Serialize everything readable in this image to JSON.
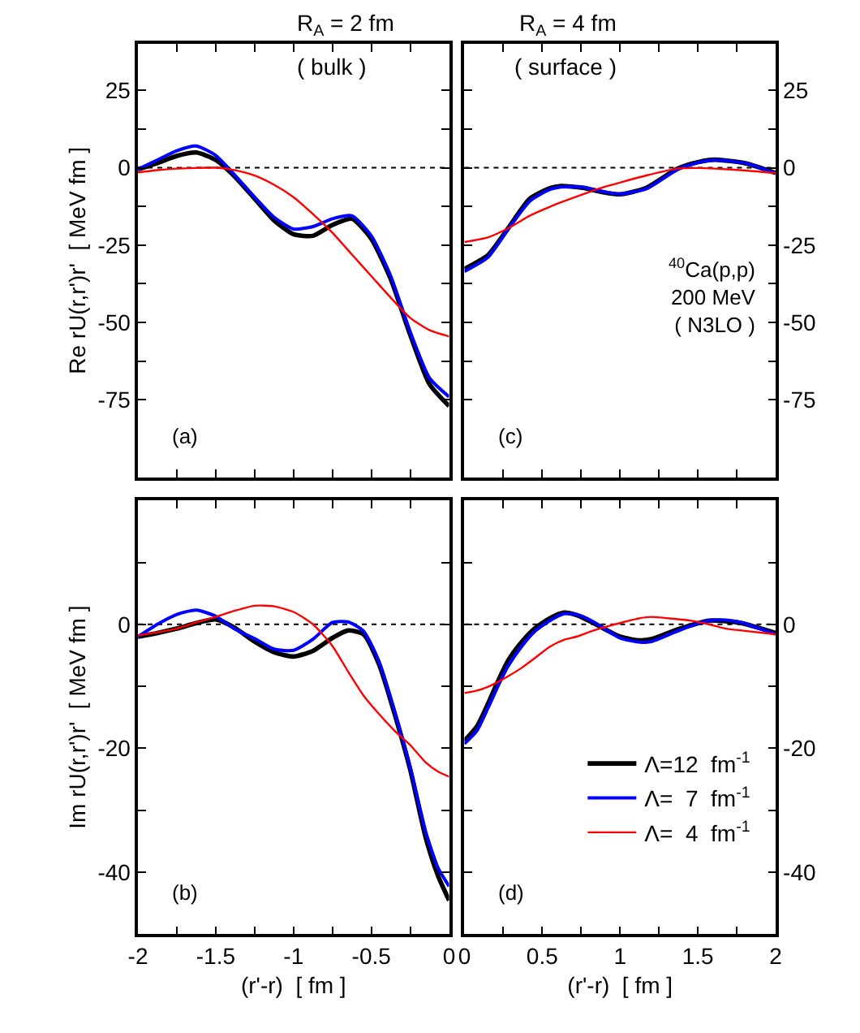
{
  "chart_data": [
    {
      "type": "line",
      "title": "R$_{A}$ = 2 fm",
      "subtitle": "( bulk )",
      "ylabel": "Re rU(r,r')r'  [ MeV fm ]",
      "annotations": [
        "(a)"
      ],
      "tick_labels": "y",
      "xlim": [
        -2,
        0
      ],
      "xticks": [
        {
          "value": -2,
          "label": null
        },
        {
          "value": -1.75,
          "label": null
        },
        {
          "value": -1.5,
          "label": null
        },
        {
          "value": -1.25,
          "label": null
        },
        {
          "value": -1,
          "label": null
        },
        {
          "value": -0.75,
          "label": null
        },
        {
          "value": -0.5,
          "label": null
        },
        {
          "value": -0.25,
          "label": null
        }
      ],
      "ylim": [
        -100,
        40
      ],
      "yticks": [
        {
          "value": -62.5,
          "label": null
        },
        -75,
        -50,
        {
          "value": -37.5,
          "label": null
        },
        -25,
        {
          "value": -12.5,
          "label": null
        },
        0,
        {
          "value": 12.5,
          "label": null
        },
        25
      ],
      "ref_lines": [
        {
          "axis": "y",
          "value": 0,
          "color": "#000000",
          "line_style": "dotted"
        }
      ],
      "x": [
        -2,
        -1.875,
        -1.75,
        -1.625,
        -1.5,
        -1.375,
        -1.25,
        -1.125,
        -1,
        -0.875,
        -0.75,
        -0.625,
        -0.5,
        -0.375,
        -0.25,
        -0.125,
        0
      ],
      "series": [
        {
          "color": "#000000",
          "values": [
            -0.5,
            1.5,
            3.8,
            4.9,
            2.5,
            -3,
            -10,
            -17,
            -21.5,
            -22,
            -18.5,
            -16.5,
            -23,
            -36,
            -54,
            -70,
            -77
          ]
        },
        {
          "color": "#0000ff",
          "values": [
            -0.5,
            2.5,
            5.5,
            7,
            4,
            -2.5,
            -9.5,
            -16,
            -19.8,
            -19,
            -16.5,
            -15.5,
            -22,
            -35,
            -53,
            -68,
            -74
          ]
        },
        {
          "color": "#ff0000",
          "values": [
            -1.5,
            -0.8,
            -0.3,
            -0.1,
            0,
            -0.8,
            -2.5,
            -5.5,
            -9.5,
            -15,
            -21,
            -28,
            -35,
            -42,
            -48.5,
            -52.5,
            -54.5
          ]
        }
      ]
    },
    {
      "type": "line",
      "title": "R$_{A}$ = 4 fm",
      "subtitle": "( surface )",
      "annotations": [
        "$^{40}$Ca(p,p)\n200 MeV\n( N3LO )",
        "(c)"
      ],
      "tick_labels": "y",
      "xlim": [
        0,
        2
      ],
      "xticks": [
        {
          "value": 0.25,
          "label": null
        },
        {
          "value": 0.5,
          "label": null
        },
        {
          "value": 0.75,
          "label": null
        },
        {
          "value": 1,
          "label": null
        },
        {
          "value": 1.25,
          "label": null
        },
        {
          "value": 1.5,
          "label": null
        },
        {
          "value": 1.75,
          "label": null
        }
      ],
      "ylim": [
        -100,
        40
      ],
      "yticks": [
        {
          "value": -62.5,
          "label": null
        },
        -75,
        -50,
        {
          "value": -37.5,
          "label": null
        },
        -25,
        {
          "value": -12.5,
          "label": null
        },
        0,
        {
          "value": 12.5,
          "label": null
        },
        25
      ],
      "ref_lines": [
        {
          "axis": "y",
          "value": 0,
          "color": "#000000",
          "line_style": "dotted"
        }
      ],
      "x": [
        0,
        0.15,
        0.28,
        0.42,
        0.55,
        0.62,
        0.76,
        0.9,
        1.0,
        1.17,
        1.37,
        1.5,
        1.61,
        1.81,
        2
      ],
      "series": [
        {
          "color": "#000000",
          "values": [
            -32.7,
            -28.3,
            -19.6,
            -10,
            -6.6,
            -5.9,
            -6.5,
            -8,
            -8.6,
            -6.5,
            -0.3,
            1.8,
            2.6,
            1.4,
            -1.7
          ]
        },
        {
          "color": "#0000ff",
          "values": [
            -33.5,
            -29,
            -20,
            -10.8,
            -7,
            -6.2,
            -6.3,
            -7.8,
            -8.5,
            -6.8,
            -0.6,
            1.6,
            2.5,
            1.4,
            -1.8
          ]
        },
        {
          "color": "#ff0000",
          "values": [
            -24,
            -22.5,
            -19.6,
            -15.5,
            -12.6,
            -11.2,
            -8.6,
            -6.2,
            -4.8,
            -2.5,
            -0.3,
            -0.1,
            -0.3,
            -0.9,
            -1.7
          ]
        }
      ]
    },
    {
      "type": "line",
      "ylabel": "Im rU(r,r')r'  [ MeV fm ]",
      "xlabel": "(r'-r)  [ fm ]",
      "annotations": [
        "(b)"
      ],
      "xlim": [
        -2,
        0
      ],
      "xticks": [
        -2,
        {
          "value": -1.75,
          "label": null
        },
        -1.5,
        {
          "value": -1.25,
          "label": null
        },
        -1,
        {
          "value": -0.75,
          "label": null
        },
        -0.5,
        {
          "value": -0.25,
          "label": null
        },
        0
      ],
      "ylim": [
        -50,
        20
      ],
      "yticks": [
        -40,
        {
          "value": -30,
          "label": null
        },
        -20,
        {
          "value": -10,
          "label": null
        },
        0,
        {
          "value": 10,
          "label": null
        }
      ],
      "ref_lines": [
        {
          "axis": "y",
          "value": 0,
          "color": "#000000",
          "line_style": "dotted"
        }
      ],
      "x": [
        -2,
        -1.875,
        -1.75,
        -1.625,
        -1.5,
        -1.375,
        -1.25,
        -1.125,
        -1,
        -0.875,
        -0.75,
        -0.65,
        -0.55,
        -0.45,
        -0.35,
        -0.25,
        -0.15,
        -0.07,
        0
      ],
      "series": [
        {
          "color": "#000000",
          "values": [
            -2,
            -1.4,
            -0.7,
            0.2,
            0.8,
            -0.6,
            -2.8,
            -4.5,
            -5.2,
            -4.3,
            -2.2,
            -1,
            -1.6,
            -6.5,
            -14.5,
            -23.5,
            -34.5,
            -40.7,
            -44.6
          ]
        },
        {
          "color": "#0000ff",
          "values": [
            -2,
            0,
            1.6,
            2.3,
            1.3,
            -0.8,
            -2.3,
            -4,
            -4.2,
            -2.4,
            0.3,
            0.4,
            -1.1,
            -6,
            -14,
            -23,
            -33.5,
            -39.4,
            -42.3
          ]
        },
        {
          "color": "#ff0000",
          "values": [
            -1.8,
            -1.3,
            -0.7,
            0.3,
            1.2,
            2.2,
            3,
            2.9,
            2,
            0,
            -3.5,
            -7.6,
            -11.5,
            -14.5,
            -17.2,
            -19.5,
            -22.3,
            -23.8,
            -24.6
          ]
        }
      ]
    },
    {
      "type": "line",
      "xlabel": "(r'-r)  [ fm ]",
      "annotations": [
        "(d)"
      ],
      "legend": "bottom right",
      "xlim": [
        0,
        2
      ],
      "xticks": [
        0,
        {
          "value": 0.25,
          "label": null
        },
        0.5,
        {
          "value": 0.75,
          "label": null
        },
        1,
        {
          "value": 1.25,
          "label": null
        },
        1.5,
        {
          "value": 1.75,
          "label": null
        },
        2
      ],
      "ylim": [
        -50,
        20
      ],
      "yticks": [
        -40,
        {
          "value": -30,
          "label": null
        },
        -20,
        {
          "value": -10,
          "label": null
        },
        0,
        {
          "value": 10,
          "label": null
        }
      ],
      "ref_lines": [
        {
          "axis": "y",
          "value": 0,
          "color": "#000000",
          "line_style": "dotted"
        }
      ],
      "x": [
        0,
        0.08,
        0.15,
        0.21,
        0.28,
        0.37,
        0.45,
        0.55,
        0.64,
        0.72,
        0.83,
        1.0,
        1.13,
        1.2,
        1.34,
        1.45,
        1.57,
        1.68,
        1.78,
        2
      ],
      "series": [
        {
          "name": "Λ=12  fm$^{-1}$",
          "color": "#000000",
          "values": [
            -18.8,
            -16.5,
            -12.9,
            -9.5,
            -5.9,
            -2.8,
            -0.7,
            1,
            1.9,
            1.5,
            0.2,
            -2,
            -2.6,
            -2.4,
            -1.1,
            -0.2,
            0.6,
            0.5,
            0.2,
            -1.4
          ]
        },
        {
          "name": "Λ=  7  fm$^{-1}$",
          "color": "#0000ff",
          "values": [
            -19.3,
            -17.2,
            -13.6,
            -10.3,
            -6.8,
            -3.5,
            -1.2,
            0.6,
            1.7,
            1.6,
            0.4,
            -2.2,
            -2.9,
            -2.8,
            -1.4,
            -0.3,
            0.6,
            0.7,
            0.3,
            -1.6
          ]
        },
        {
          "name": "Λ=  4  fm$^{-1}$",
          "color": "#ff0000",
          "values": [
            -11.1,
            -10.7,
            -10.1,
            -9.4,
            -8.4,
            -7,
            -5.5,
            -3.6,
            -2.5,
            -2,
            -1,
            0.2,
            1,
            1.2,
            0.9,
            0.6,
            0,
            -0.7,
            -1,
            -1.6
          ]
        }
      ]
    }
  ]
}
